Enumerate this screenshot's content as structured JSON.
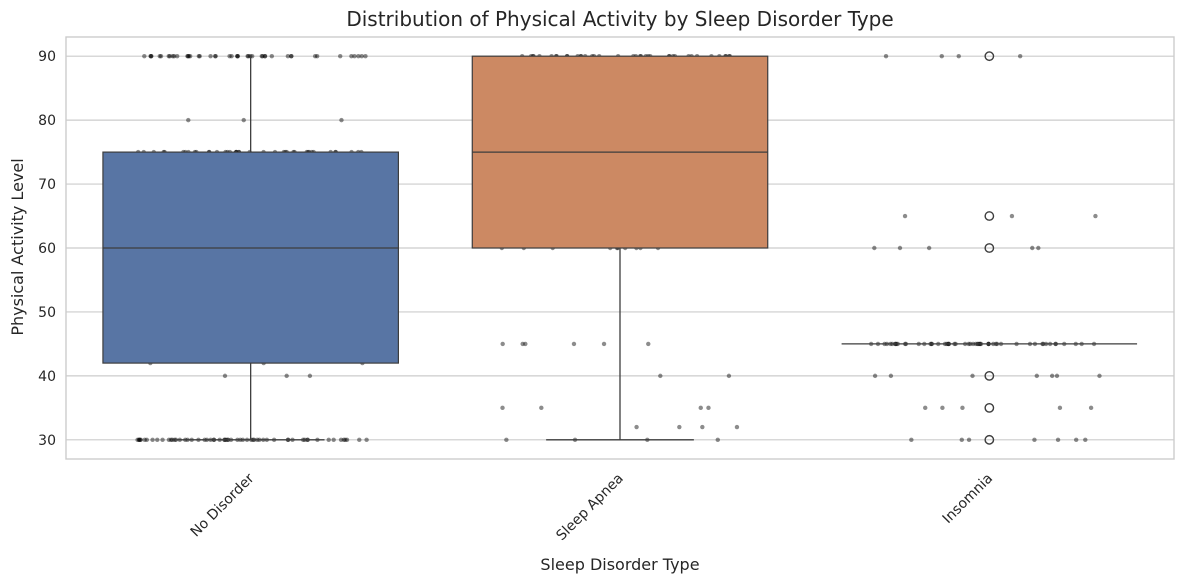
{
  "chart_data": {
    "type": "box",
    "title": "Distribution of Physical Activity by Sleep Disorder Type",
    "xlabel": "Sleep Disorder Type",
    "ylabel": "Physical Activity Level",
    "ylim": [
      27,
      93
    ],
    "yticks": [
      30,
      40,
      50,
      60,
      70,
      80,
      90
    ],
    "grid": "horizontal",
    "colors": [
      "#5875a4",
      "#cc8963",
      "#e0e0e0"
    ],
    "categories": [
      "No Disorder",
      "Sleep Apnea",
      "Insomnia"
    ],
    "boxes": [
      {
        "category": "No Disorder",
        "min": 30,
        "q1": 42,
        "median": 60,
        "q3": 75,
        "max": 90,
        "fliers": []
      },
      {
        "category": "Sleep Apnea",
        "min": 30,
        "q1": 60,
        "median": 75,
        "q3": 90,
        "max": 90,
        "fliers": []
      },
      {
        "category": "Insomnia",
        "min": 45,
        "q1": 45,
        "median": 45,
        "q3": 45,
        "max": 45,
        "fliers": [
          30,
          35,
          40,
          60,
          65,
          90
        ]
      }
    ],
    "strip_points": [
      {
        "category": "No Disorder",
        "value": 90,
        "count": 45
      },
      {
        "category": "No Disorder",
        "value": 80,
        "count": 3
      },
      {
        "category": "No Disorder",
        "value": 75,
        "count": 40
      },
      {
        "category": "No Disorder",
        "value": 70,
        "count": 6
      },
      {
        "category": "No Disorder",
        "value": 60,
        "count": 65
      },
      {
        "category": "No Disorder",
        "value": 55,
        "count": 8
      },
      {
        "category": "No Disorder",
        "value": 50,
        "count": 7
      },
      {
        "category": "No Disorder",
        "value": 47,
        "count": 1
      },
      {
        "category": "No Disorder",
        "value": 45,
        "count": 6
      },
      {
        "category": "No Disorder",
        "value": 42,
        "count": 3
      },
      {
        "category": "No Disorder",
        "value": 40,
        "count": 3
      },
      {
        "category": "No Disorder",
        "value": 30,
        "count": 60
      },
      {
        "category": "Sleep Apnea",
        "value": 90,
        "count": 38
      },
      {
        "category": "Sleep Apnea",
        "value": 85,
        "count": 2
      },
      {
        "category": "Sleep Apnea",
        "value": 75,
        "count": 30
      },
      {
        "category": "Sleep Apnea",
        "value": 60,
        "count": 10
      },
      {
        "category": "Sleep Apnea",
        "value": 45,
        "count": 6
      },
      {
        "category": "Sleep Apnea",
        "value": 40,
        "count": 2
      },
      {
        "category": "Sleep Apnea",
        "value": 35,
        "count": 4
      },
      {
        "category": "Sleep Apnea",
        "value": 32,
        "count": 4
      },
      {
        "category": "Sleep Apnea",
        "value": 30,
        "count": 4
      },
      {
        "category": "Insomnia",
        "value": 90,
        "count": 4
      },
      {
        "category": "Insomnia",
        "value": 65,
        "count": 3
      },
      {
        "category": "Insomnia",
        "value": 60,
        "count": 5
      },
      {
        "category": "Insomnia",
        "value": 45,
        "count": 55
      },
      {
        "category": "Insomnia",
        "value": 40,
        "count": 7
      },
      {
        "category": "Insomnia",
        "value": 35,
        "count": 5
      },
      {
        "category": "Insomnia",
        "value": 30,
        "count": 7
      }
    ]
  }
}
